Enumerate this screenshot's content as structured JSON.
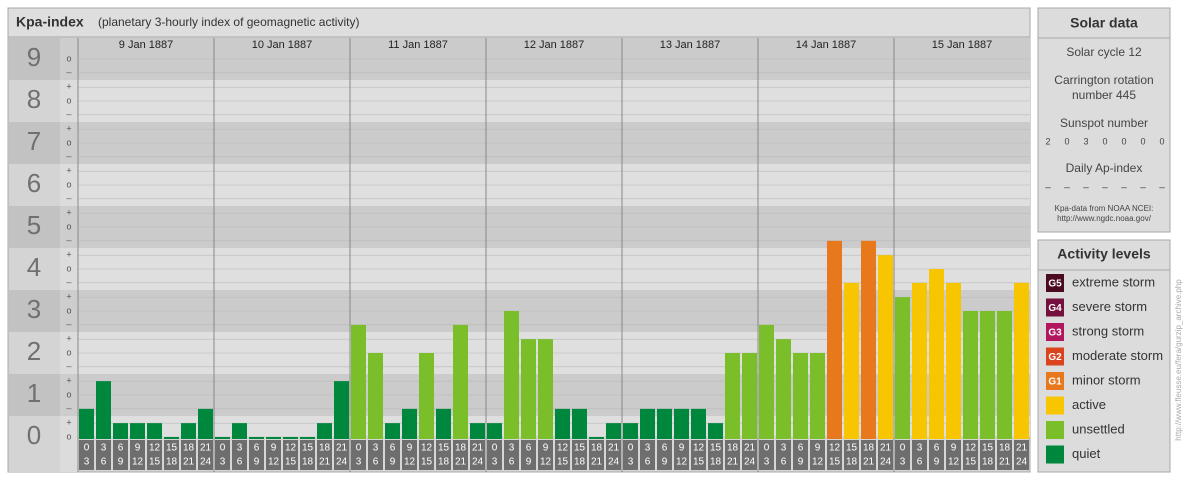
{
  "chart_data": {
    "type": "bar",
    "title": "Kpa-index",
    "subtitle": "(planetary 3-hourly index of geomagnetic activity)",
    "ylim": [
      0,
      9.5
    ],
    "yticks": [
      0,
      1,
      2,
      3,
      4,
      5,
      6,
      7,
      8,
      9
    ],
    "minor_ticks": [
      {
        "value": 0,
        "label": "o"
      },
      {
        "value": 0.33,
        "label": "+"
      },
      {
        "value": 0.67,
        "label": "–"
      },
      {
        "value": 1,
        "label": "o"
      },
      {
        "value": 1.33,
        "label": "+"
      },
      {
        "value": 1.67,
        "label": "–"
      },
      {
        "value": 2,
        "label": "o"
      },
      {
        "value": 2.33,
        "label": "+"
      },
      {
        "value": 2.67,
        "label": "–"
      },
      {
        "value": 3,
        "label": "o"
      },
      {
        "value": 3.33,
        "label": "+"
      },
      {
        "value": 3.67,
        "label": "–"
      },
      {
        "value": 4,
        "label": "o"
      },
      {
        "value": 4.33,
        "label": "+"
      },
      {
        "value": 4.67,
        "label": "–"
      },
      {
        "value": 5,
        "label": "o"
      },
      {
        "value": 5.33,
        "label": "+"
      },
      {
        "value": 5.67,
        "label": "–"
      },
      {
        "value": 6,
        "label": "o"
      },
      {
        "value": 6.33,
        "label": "+"
      },
      {
        "value": 6.67,
        "label": "–"
      },
      {
        "value": 7,
        "label": "o"
      },
      {
        "value": 7.33,
        "label": "+"
      },
      {
        "value": 7.67,
        "label": "–"
      },
      {
        "value": 8,
        "label": "o"
      },
      {
        "value": 8.33,
        "label": "+"
      },
      {
        "value": 8.67,
        "label": "–"
      },
      {
        "value": 9,
        "label": "o"
      }
    ],
    "hour_bins": [
      0,
      3,
      6,
      9,
      12,
      15,
      18,
      21,
      24
    ],
    "grid": true,
    "days": [
      {
        "label": "9 Jan 1887",
        "values": [
          0.67,
          1.33,
          0.33,
          0.33,
          0.33,
          0,
          0.33,
          0.67
        ],
        "colors": [
          "#00873e",
          "#00873e",
          "#00873e",
          "#00873e",
          "#00873e",
          "#00873e",
          "#00873e",
          "#00873e"
        ]
      },
      {
        "label": "10 Jan 1887",
        "values": [
          0,
          0.33,
          0,
          0,
          0,
          0,
          0.33,
          1.33
        ],
        "colors": [
          "#00873e",
          "#00873e",
          "#00873e",
          "#00873e",
          "#00873e",
          "#00873e",
          "#00873e",
          "#00873e"
        ]
      },
      {
        "label": "11 Jan 1887",
        "values": [
          2.67,
          2,
          0.33,
          0.67,
          2,
          0.67,
          2.67,
          0.33
        ],
        "colors": [
          "#7abf2a",
          "#7abf2a",
          "#00873e",
          "#00873e",
          "#7abf2a",
          "#00873e",
          "#7abf2a",
          "#00873e"
        ]
      },
      {
        "label": "12 Jan 1887",
        "values": [
          0.33,
          3,
          2.33,
          2.33,
          0.67,
          0.67,
          0,
          0.33
        ],
        "colors": [
          "#00873e",
          "#7abf2a",
          "#7abf2a",
          "#7abf2a",
          "#00873e",
          "#00873e",
          "#00873e",
          "#00873e"
        ]
      },
      {
        "label": "13 Jan 1887",
        "values": [
          0.33,
          0.67,
          0.67,
          0.67,
          0.67,
          0.33,
          2,
          2
        ],
        "colors": [
          "#00873e",
          "#00873e",
          "#00873e",
          "#00873e",
          "#00873e",
          "#00873e",
          "#7abf2a",
          "#7abf2a"
        ]
      },
      {
        "label": "14 Jan 1887",
        "values": [
          2.67,
          2.33,
          2,
          2,
          4.67,
          3.67,
          4.67,
          4.33
        ],
        "colors": [
          "#7abf2a",
          "#7abf2a",
          "#7abf2a",
          "#7abf2a",
          "#e8781c",
          "#f7c600",
          "#e8781c",
          "#f7c600"
        ]
      },
      {
        "label": "15 Jan 1887",
        "values": [
          3.33,
          3.67,
          4,
          3.67,
          3,
          3,
          3,
          3.67
        ],
        "colors": [
          "#7abf2a",
          "#f7c600",
          "#f7c600",
          "#f7c600",
          "#7abf2a",
          "#7abf2a",
          "#7abf2a",
          "#f7c600"
        ]
      }
    ]
  },
  "solar_data": {
    "title": "Solar data",
    "cycle": "Solar cycle 12",
    "carrington": [
      "Carrington rotation",
      "number 445"
    ],
    "sunspot_title": "Sunspot number",
    "sunspots": [
      2,
      0,
      3,
      0,
      0,
      0,
      0
    ],
    "ap_title": "Daily Ap-index",
    "ap": [
      "–",
      "–",
      "–",
      "–",
      "–",
      "–",
      "–"
    ],
    "source": [
      "Kpa-data from NOAA NCEI:",
      "http://www.ngdc.noaa.gov/"
    ]
  },
  "activity_levels": {
    "title": "Activity levels",
    "items": [
      {
        "badge": "G5",
        "label": "extreme storm",
        "color": "#4a0a20"
      },
      {
        "badge": "G4",
        "label": "severe storm",
        "color": "#74103e"
      },
      {
        "badge": "G3",
        "label": "strong storm",
        "color": "#b0175e"
      },
      {
        "badge": "G2",
        "label": "moderate storm",
        "color": "#d9431e"
      },
      {
        "badge": "G1",
        "label": "minor storm",
        "color": "#e8781c"
      },
      {
        "label": "active",
        "color": "#f7c600"
      },
      {
        "label": "unsettled",
        "color": "#7abf2a"
      },
      {
        "label": "quiet",
        "color": "#00873e"
      }
    ]
  },
  "side_url": "http://www.fleusse.eu/fera/gurzip_archive.php"
}
